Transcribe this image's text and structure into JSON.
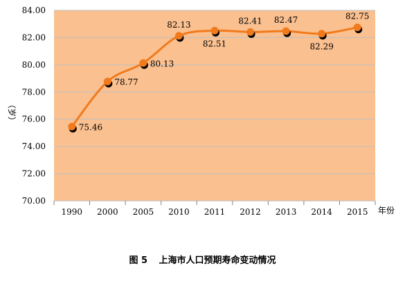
{
  "chart_data": {
    "type": "line",
    "categories": [
      "1990",
      "2000",
      "2005",
      "2010",
      "2011",
      "2012",
      "2013",
      "2014",
      "2015"
    ],
    "series": [
      {
        "values": [
          75.46,
          78.77,
          80.13,
          82.13,
          82.51,
          82.41,
          82.47,
          82.29,
          82.75
        ]
      }
    ],
    "data_labels": [
      "75.46",
      "78.77",
      "80.13",
      "82.13",
      "82.51",
      "82.41",
      "82.47",
      "82.29",
      "82.75"
    ],
    "y_ticks": [
      "70.00",
      "72.00",
      "74.00",
      "76.00",
      "78.00",
      "80.00",
      "82.00",
      "84.00"
    ],
    "ylim": [
      70,
      84
    ],
    "ylabel": "（岁）",
    "xlabel": "年份",
    "grid": true,
    "smooth": true,
    "colors": {
      "plot_bg": "#FAC090",
      "line": "#F07A1C",
      "marker": "#F07A1C",
      "shadow": "#000000",
      "grid": "#bfbfbf"
    }
  },
  "caption": {
    "fig_num": "图 5",
    "title": "上海市人口预期寿命变动情况"
  }
}
